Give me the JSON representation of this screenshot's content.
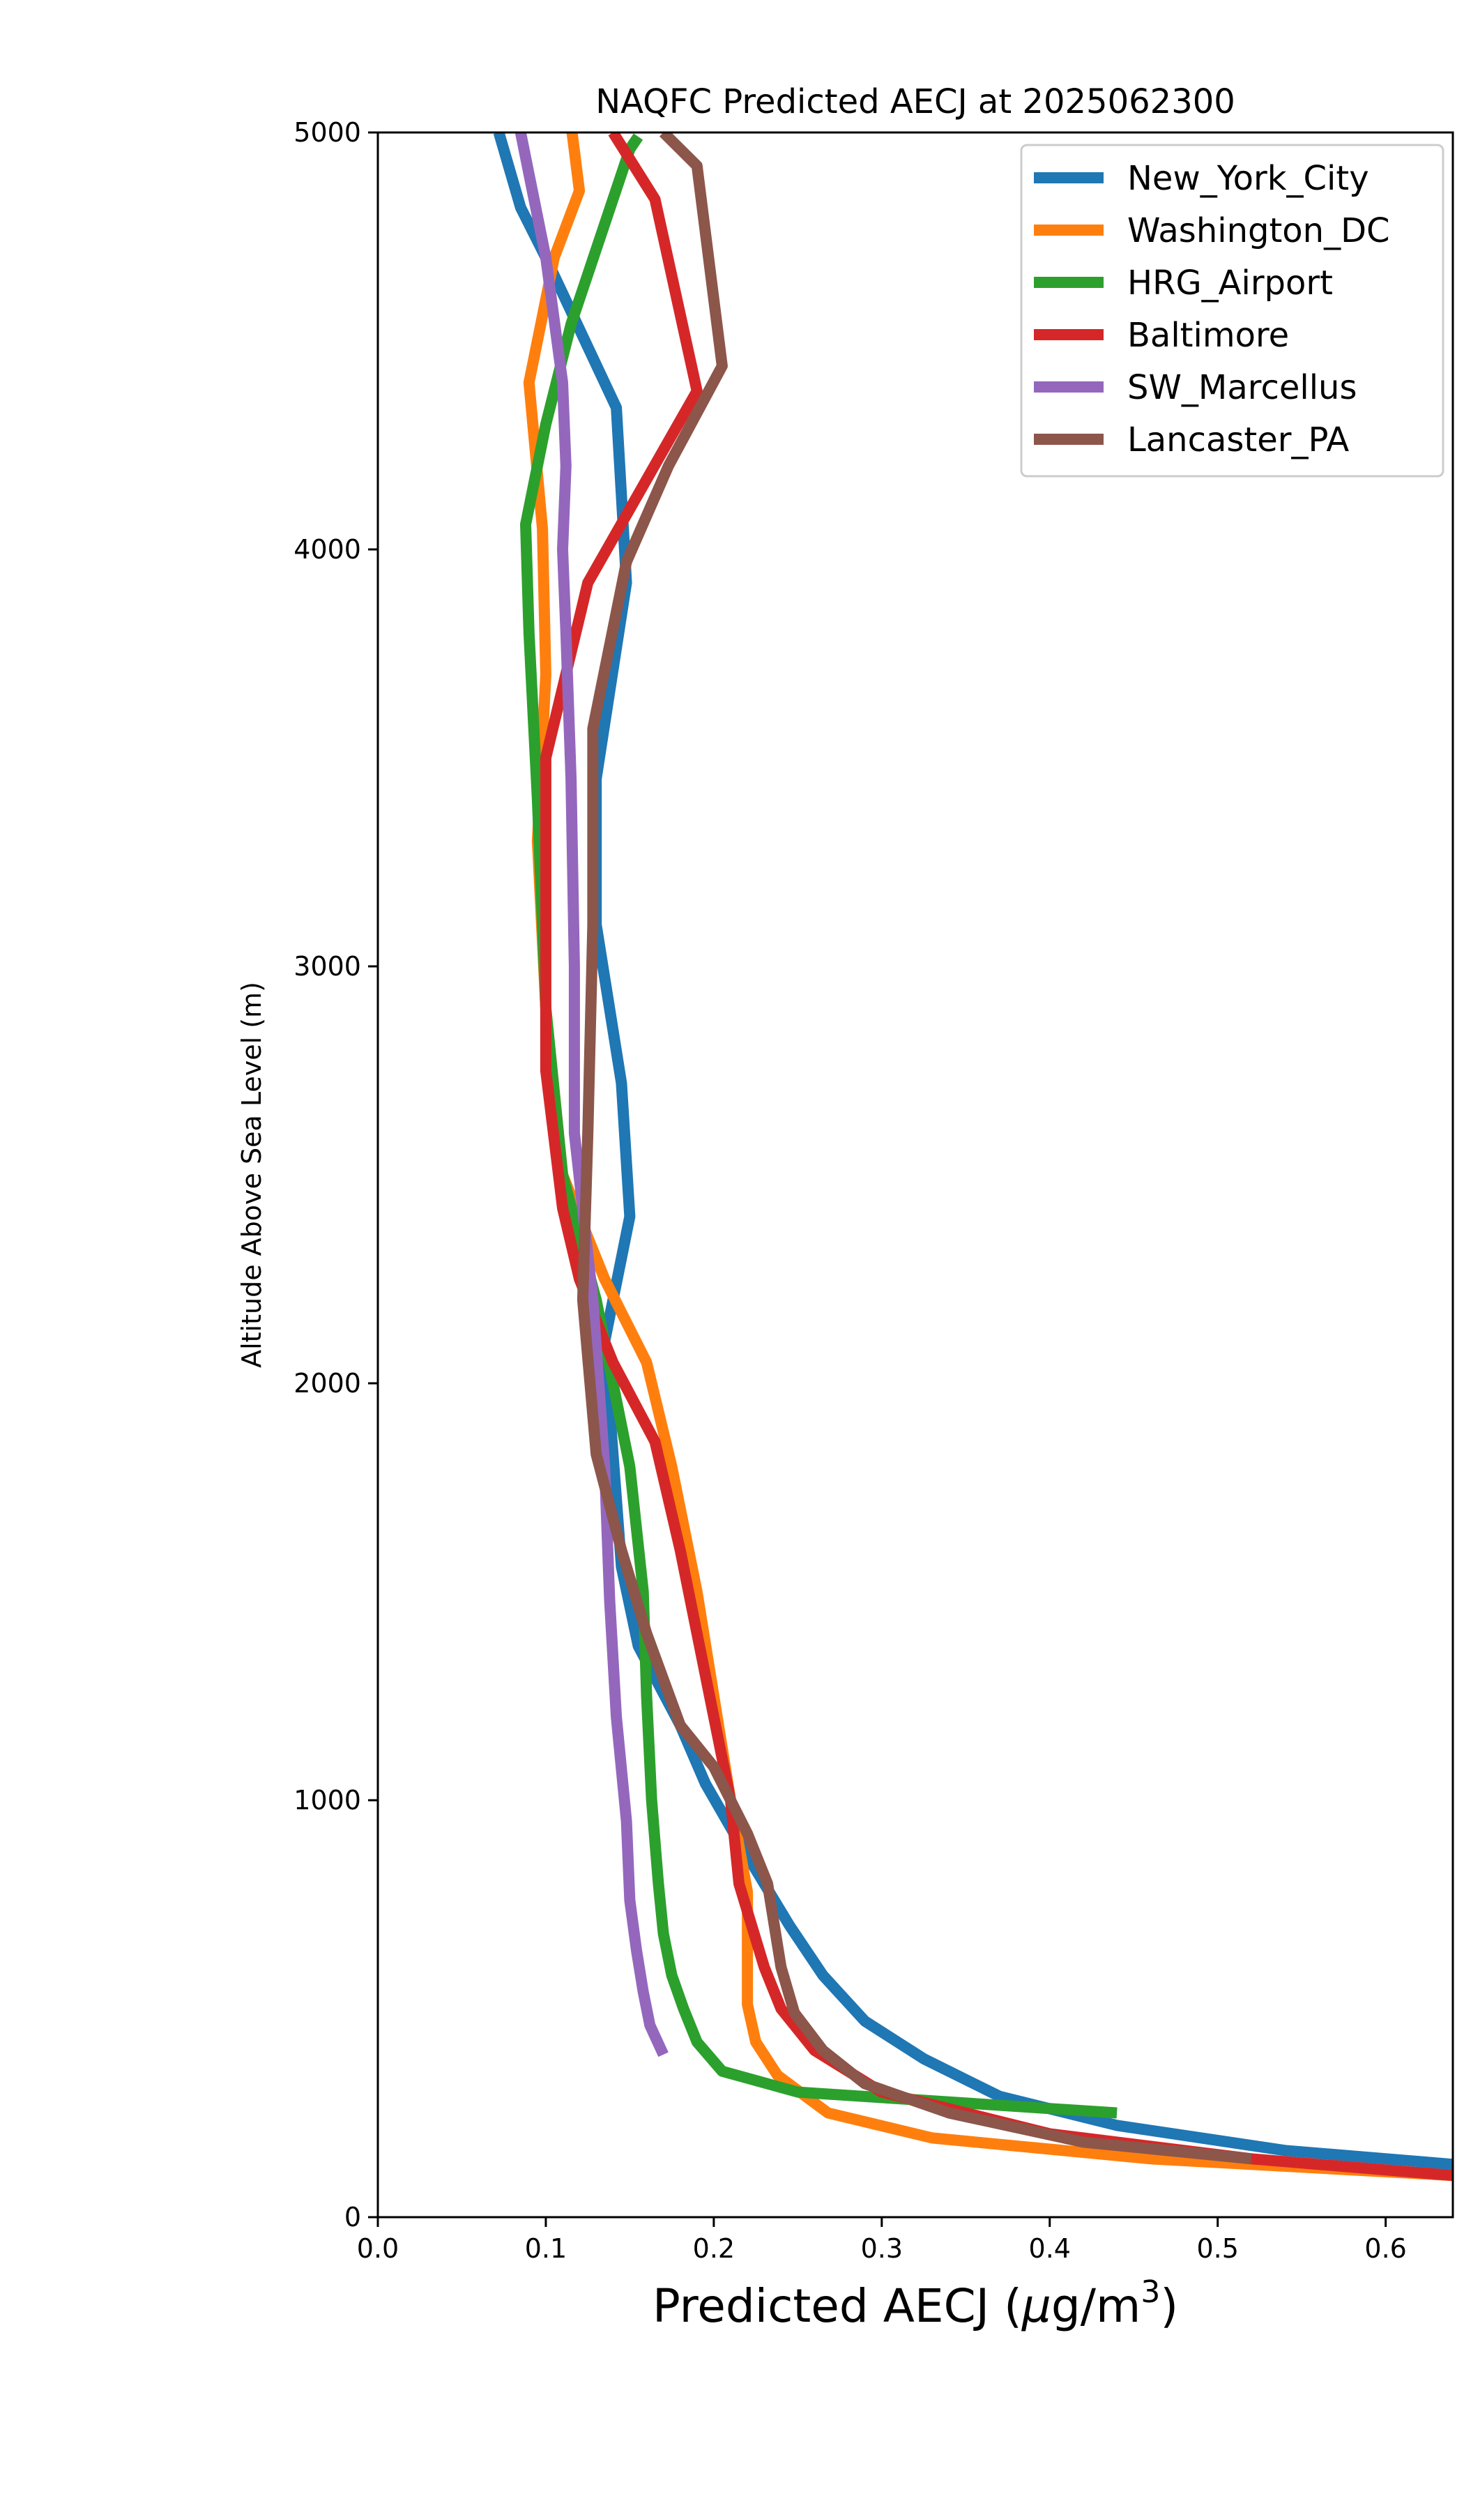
{
  "chart_data": {
    "type": "line",
    "title": "NAQFC Predicted AECJ at 2025062300",
    "xlabel_main": "Predicted AECJ (",
    "xlabel_mu": "μ",
    "xlabel_unit": "g/m",
    "xlabel_sup": "3",
    "xlabel_close": ")",
    "ylabel": "Altitude Above Sea Level (m)",
    "xlim": [
      0,
      0.64
    ],
    "ylim": [
      0,
      5000
    ],
    "xticks": [
      0.0,
      0.1,
      0.2,
      0.3,
      0.4,
      0.5,
      0.6
    ],
    "xtick_labels": [
      "0.0",
      "0.1",
      "0.2",
      "0.3",
      "0.4",
      "0.5",
      "0.6"
    ],
    "yticks": [
      0,
      1000,
      2000,
      3000,
      4000,
      5000
    ],
    "ytick_labels": [
      "0",
      "1000",
      "2000",
      "3000",
      "4000",
      "5000"
    ],
    "legend_position": "top-right",
    "grid": false,
    "series": [
      {
        "name": "New_York_City",
        "color": "#1f77b4",
        "points": [
          [
            0.66,
            120
          ],
          [
            0.54,
            160
          ],
          [
            0.44,
            220
          ],
          [
            0.37,
            290
          ],
          [
            0.325,
            380
          ],
          [
            0.29,
            470
          ],
          [
            0.265,
            580
          ],
          [
            0.245,
            700
          ],
          [
            0.215,
            900
          ],
          [
            0.195,
            1040
          ],
          [
            0.18,
            1180
          ],
          [
            0.155,
            1370
          ],
          [
            0.145,
            1560
          ],
          [
            0.14,
            1830
          ],
          [
            0.135,
            2100
          ],
          [
            0.15,
            2400
          ],
          [
            0.145,
            2720
          ],
          [
            0.13,
            3100
          ],
          [
            0.13,
            3450
          ],
          [
            0.148,
            3920
          ],
          [
            0.142,
            4340
          ],
          [
            0.1,
            4700
          ],
          [
            0.085,
            4820
          ],
          [
            0.072,
            5000
          ]
        ]
      },
      {
        "name": "Washington_DC",
        "color": "#ff7f0e",
        "points": [
          [
            0.64,
            100
          ],
          [
            0.46,
            140
          ],
          [
            0.33,
            190
          ],
          [
            0.268,
            250
          ],
          [
            0.238,
            340
          ],
          [
            0.225,
            420
          ],
          [
            0.22,
            510
          ],
          [
            0.22,
            620
          ],
          [
            0.22,
            780
          ],
          [
            0.21,
            1000
          ],
          [
            0.2,
            1250
          ],
          [
            0.19,
            1500
          ],
          [
            0.175,
            1800
          ],
          [
            0.16,
            2050
          ],
          [
            0.135,
            2250
          ],
          [
            0.11,
            2500
          ],
          [
            0.1,
            2900
          ],
          [
            0.095,
            3300
          ],
          [
            0.1,
            3700
          ],
          [
            0.098,
            4050
          ],
          [
            0.09,
            4400
          ],
          [
            0.105,
            4700
          ],
          [
            0.12,
            4860
          ],
          [
            0.115,
            5020
          ]
        ]
      },
      {
        "name": "HRG_Airport",
        "color": "#2ca02c",
        "points": [
          [
            0.44,
            250
          ],
          [
            0.25,
            300
          ],
          [
            0.205,
            350
          ],
          [
            0.19,
            420
          ],
          [
            0.182,
            500
          ],
          [
            0.175,
            580
          ],
          [
            0.17,
            680
          ],
          [
            0.167,
            800
          ],
          [
            0.163,
            1000
          ],
          [
            0.16,
            1250
          ],
          [
            0.158,
            1500
          ],
          [
            0.15,
            1800
          ],
          [
            0.13,
            2200
          ],
          [
            0.11,
            2500
          ],
          [
            0.1,
            2900
          ],
          [
            0.095,
            3400
          ],
          [
            0.09,
            3800
          ],
          [
            0.088,
            4060
          ],
          [
            0.1,
            4300
          ],
          [
            0.115,
            4540
          ],
          [
            0.15,
            4960
          ],
          [
            0.155,
            4990
          ]
        ]
      },
      {
        "name": "Baltimore",
        "color": "#d62728",
        "points": [
          [
            0.64,
            100
          ],
          [
            0.52,
            140
          ],
          [
            0.4,
            200
          ],
          [
            0.3,
            300
          ],
          [
            0.26,
            400
          ],
          [
            0.24,
            500
          ],
          [
            0.23,
            600
          ],
          [
            0.215,
            800
          ],
          [
            0.21,
            1000
          ],
          [
            0.195,
            1300
          ],
          [
            0.18,
            1600
          ],
          [
            0.165,
            1860
          ],
          [
            0.14,
            2050
          ],
          [
            0.12,
            2250
          ],
          [
            0.11,
            2420
          ],
          [
            0.1,
            2750
          ],
          [
            0.1,
            3200
          ],
          [
            0.1,
            3500
          ],
          [
            0.125,
            3920
          ],
          [
            0.19,
            4380
          ],
          [
            0.165,
            4840
          ],
          [
            0.14,
            5000
          ]
        ]
      },
      {
        "name": "SW_Marcellus",
        "color": "#9467bd",
        "points": [
          [
            0.17,
            390
          ],
          [
            0.162,
            460
          ],
          [
            0.158,
            540
          ],
          [
            0.154,
            640
          ],
          [
            0.15,
            760
          ],
          [
            0.148,
            950
          ],
          [
            0.142,
            1200
          ],
          [
            0.138,
            1480
          ],
          [
            0.135,
            1800
          ],
          [
            0.128,
            2200
          ],
          [
            0.117,
            2600
          ],
          [
            0.117,
            3000
          ],
          [
            0.115,
            3450
          ],
          [
            0.112,
            3800
          ],
          [
            0.11,
            4000
          ],
          [
            0.112,
            4200
          ],
          [
            0.11,
            4400
          ],
          [
            0.1,
            4700
          ],
          [
            0.09,
            4900
          ],
          [
            0.085,
            5000
          ]
        ]
      },
      {
        "name": "Lancaster_PA",
        "color": "#8c564b",
        "points": [
          [
            0.52,
            140
          ],
          [
            0.42,
            180
          ],
          [
            0.34,
            250
          ],
          [
            0.29,
            320
          ],
          [
            0.265,
            400
          ],
          [
            0.248,
            490
          ],
          [
            0.24,
            600
          ],
          [
            0.232,
            800
          ],
          [
            0.22,
            920
          ],
          [
            0.2,
            1080
          ],
          [
            0.18,
            1180
          ],
          [
            0.16,
            1400
          ],
          [
            0.145,
            1600
          ],
          [
            0.13,
            1830
          ],
          [
            0.122,
            2200
          ],
          [
            0.125,
            2600
          ],
          [
            0.128,
            3100
          ],
          [
            0.128,
            3570
          ],
          [
            0.148,
            3970
          ],
          [
            0.173,
            4200
          ],
          [
            0.205,
            4440
          ],
          [
            0.19,
            4920
          ],
          [
            0.17,
            5000
          ]
        ]
      }
    ]
  }
}
